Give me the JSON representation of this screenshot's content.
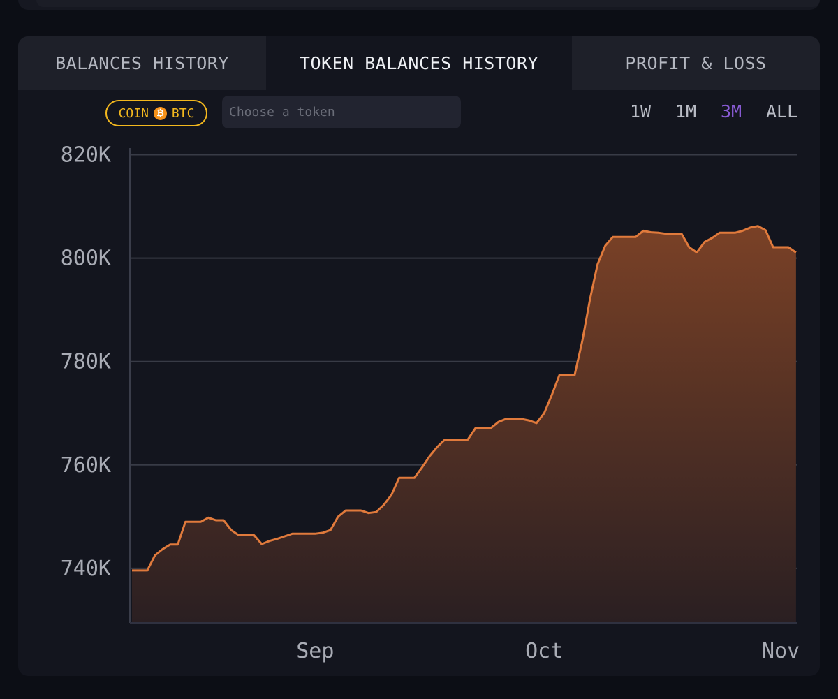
{
  "tabs": [
    {
      "label": "BALANCES HISTORY",
      "active": false
    },
    {
      "label": "TOKEN BALANCES HISTORY",
      "active": true
    },
    {
      "label": "PROFIT & LOSS",
      "active": false
    }
  ],
  "coin_badge": {
    "prefix": "COIN",
    "symbol": "BTC"
  },
  "token_search": {
    "placeholder": "Choose a token",
    "value": ""
  },
  "time_ranges": [
    {
      "label": "1W",
      "active": false
    },
    {
      "label": "1M",
      "active": false
    },
    {
      "label": "3M",
      "active": true
    },
    {
      "label": "ALL",
      "active": false
    }
  ],
  "colors": {
    "accent": "#8a5cd6",
    "line": "#e07a3c",
    "coin_badge": "#f3b81e",
    "btc": "#f7931a"
  },
  "chart_data": {
    "type": "area",
    "title": "",
    "xlabel": "",
    "ylabel": "",
    "ylim": [
      729000,
      822000
    ],
    "y_ticks": [
      740000,
      760000,
      780000,
      800000,
      820000
    ],
    "y_tick_labels": [
      "740K",
      "760K",
      "780K",
      "800K",
      "820K"
    ],
    "x_tick_labels": [
      {
        "label": "Sep",
        "date": "2024-09-01"
      },
      {
        "label": "Oct",
        "date": "2024-10-01"
      },
      {
        "label": "Nov",
        "date": "2024-11-01"
      }
    ],
    "grid": true,
    "series": [
      {
        "values": [
          [
            "2024-08-08",
            739600
          ],
          [
            "2024-08-09",
            739600
          ],
          [
            "2024-08-10",
            739600
          ],
          [
            "2024-08-11",
            742500
          ],
          [
            "2024-08-12",
            743700
          ],
          [
            "2024-08-13",
            744600
          ],
          [
            "2024-08-14",
            744600
          ],
          [
            "2024-08-15",
            749000
          ],
          [
            "2024-08-16",
            749000
          ],
          [
            "2024-08-17",
            749000
          ],
          [
            "2024-08-18",
            749800
          ],
          [
            "2024-08-19",
            749300
          ],
          [
            "2024-08-20",
            749300
          ],
          [
            "2024-08-21",
            747400
          ],
          [
            "2024-08-22",
            746400
          ],
          [
            "2024-08-23",
            746400
          ],
          [
            "2024-08-24",
            746400
          ],
          [
            "2024-08-25",
            744700
          ],
          [
            "2024-08-26",
            745300
          ],
          [
            "2024-08-27",
            745700
          ],
          [
            "2024-08-28",
            746200
          ],
          [
            "2024-08-29",
            746700
          ],
          [
            "2024-08-30",
            746700
          ],
          [
            "2024-08-31",
            746700
          ],
          [
            "2024-09-01",
            746700
          ],
          [
            "2024-09-02",
            746900
          ],
          [
            "2024-09-03",
            747400
          ],
          [
            "2024-09-04",
            750000
          ],
          [
            "2024-09-05",
            751200
          ],
          [
            "2024-09-06",
            751200
          ],
          [
            "2024-09-07",
            751200
          ],
          [
            "2024-09-08",
            750700
          ],
          [
            "2024-09-09",
            750900
          ],
          [
            "2024-09-10",
            752300
          ],
          [
            "2024-09-11",
            754200
          ],
          [
            "2024-09-12",
            757500
          ],
          [
            "2024-09-13",
            757500
          ],
          [
            "2024-09-14",
            757500
          ],
          [
            "2024-09-15",
            759500
          ],
          [
            "2024-09-16",
            761700
          ],
          [
            "2024-09-17",
            763500
          ],
          [
            "2024-09-18",
            764900
          ],
          [
            "2024-09-19",
            764900
          ],
          [
            "2024-09-20",
            764900
          ],
          [
            "2024-09-21",
            764900
          ],
          [
            "2024-09-22",
            767100
          ],
          [
            "2024-09-23",
            767100
          ],
          [
            "2024-09-24",
            767100
          ],
          [
            "2024-09-25",
            768300
          ],
          [
            "2024-09-26",
            768900
          ],
          [
            "2024-09-27",
            768900
          ],
          [
            "2024-09-28",
            768900
          ],
          [
            "2024-09-29",
            768600
          ],
          [
            "2024-09-30",
            768100
          ],
          [
            "2024-10-01",
            770000
          ],
          [
            "2024-10-02",
            773500
          ],
          [
            "2024-10-03",
            777400
          ],
          [
            "2024-10-04",
            777400
          ],
          [
            "2024-10-05",
            777400
          ],
          [
            "2024-10-06",
            784000
          ],
          [
            "2024-10-07",
            792000
          ],
          [
            "2024-10-08",
            798800
          ],
          [
            "2024-10-09",
            802400
          ],
          [
            "2024-10-10",
            804100
          ],
          [
            "2024-10-11",
            804100
          ],
          [
            "2024-10-12",
            804100
          ],
          [
            "2024-10-13",
            804100
          ],
          [
            "2024-10-14",
            805300
          ],
          [
            "2024-10-15",
            805000
          ],
          [
            "2024-10-16",
            804900
          ],
          [
            "2024-10-17",
            804700
          ],
          [
            "2024-10-18",
            804700
          ],
          [
            "2024-10-19",
            804700
          ],
          [
            "2024-10-20",
            802100
          ],
          [
            "2024-10-21",
            801100
          ],
          [
            "2024-10-22",
            803100
          ],
          [
            "2024-10-23",
            803900
          ],
          [
            "2024-10-24",
            804900
          ],
          [
            "2024-10-25",
            804900
          ],
          [
            "2024-10-26",
            804900
          ],
          [
            "2024-10-27",
            805300
          ],
          [
            "2024-10-28",
            805900
          ],
          [
            "2024-10-29",
            806200
          ],
          [
            "2024-10-30",
            805400
          ],
          [
            "2024-10-31",
            802100
          ],
          [
            "2024-11-01",
            802100
          ],
          [
            "2024-11-02",
            802100
          ],
          [
            "2024-11-03",
            801100
          ]
        ]
      }
    ]
  }
}
